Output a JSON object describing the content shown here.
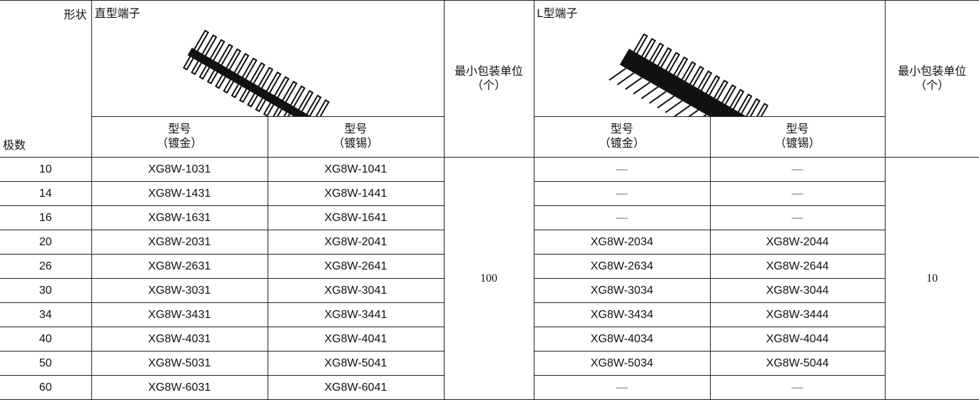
{
  "table": {
    "header": {
      "shape": "形状",
      "poles": "极数",
      "straight_title": "直型端子",
      "l_title": "L型端子",
      "min_pack": [
        "最小包装单位",
        "（个）"
      ],
      "model_gold": [
        "型号",
        "（镀金）"
      ],
      "model_tin": [
        "型号",
        "（镀锡）"
      ]
    },
    "min_pack_straight": 100,
    "min_pack_l": 10,
    "rows": [
      {
        "poles": 10,
        "straight_gold": "XG8W-1031",
        "straight_tin": "XG8W-1041",
        "l_gold": "—",
        "l_tin": "—"
      },
      {
        "poles": 14,
        "straight_gold": "XG8W-1431",
        "straight_tin": "XG8W-1441",
        "l_gold": "—",
        "l_tin": "—"
      },
      {
        "poles": 16,
        "straight_gold": "XG8W-1631",
        "straight_tin": "XG8W-1641",
        "l_gold": "—",
        "l_tin": "—"
      },
      {
        "poles": 20,
        "straight_gold": "XG8W-2031",
        "straight_tin": "XG8W-2041",
        "l_gold": "XG8W-2034",
        "l_tin": "XG8W-2044"
      },
      {
        "poles": 26,
        "straight_gold": "XG8W-2631",
        "straight_tin": "XG8W-2641",
        "l_gold": "XG8W-2634",
        "l_tin": "XG8W-2644"
      },
      {
        "poles": 30,
        "straight_gold": "XG8W-3031",
        "straight_tin": "XG8W-3041",
        "l_gold": "XG8W-3034",
        "l_tin": "XG8W-3044"
      },
      {
        "poles": 34,
        "straight_gold": "XG8W-3431",
        "straight_tin": "XG8W-3441",
        "l_gold": "XG8W-3434",
        "l_tin": "XG8W-3444"
      },
      {
        "poles": 40,
        "straight_gold": "XG8W-4031",
        "straight_tin": "XG8W-4041",
        "l_gold": "XG8W-4034",
        "l_tin": "XG8W-4044"
      },
      {
        "poles": 50,
        "straight_gold": "XG8W-5031",
        "straight_tin": "XG8W-5041",
        "l_gold": "XG8W-5034",
        "l_tin": "XG8W-5044"
      },
      {
        "poles": 60,
        "straight_gold": "XG8W-6031",
        "straight_tin": "XG8W-6041",
        "l_gold": "—",
        "l_tin": "—"
      }
    ]
  }
}
